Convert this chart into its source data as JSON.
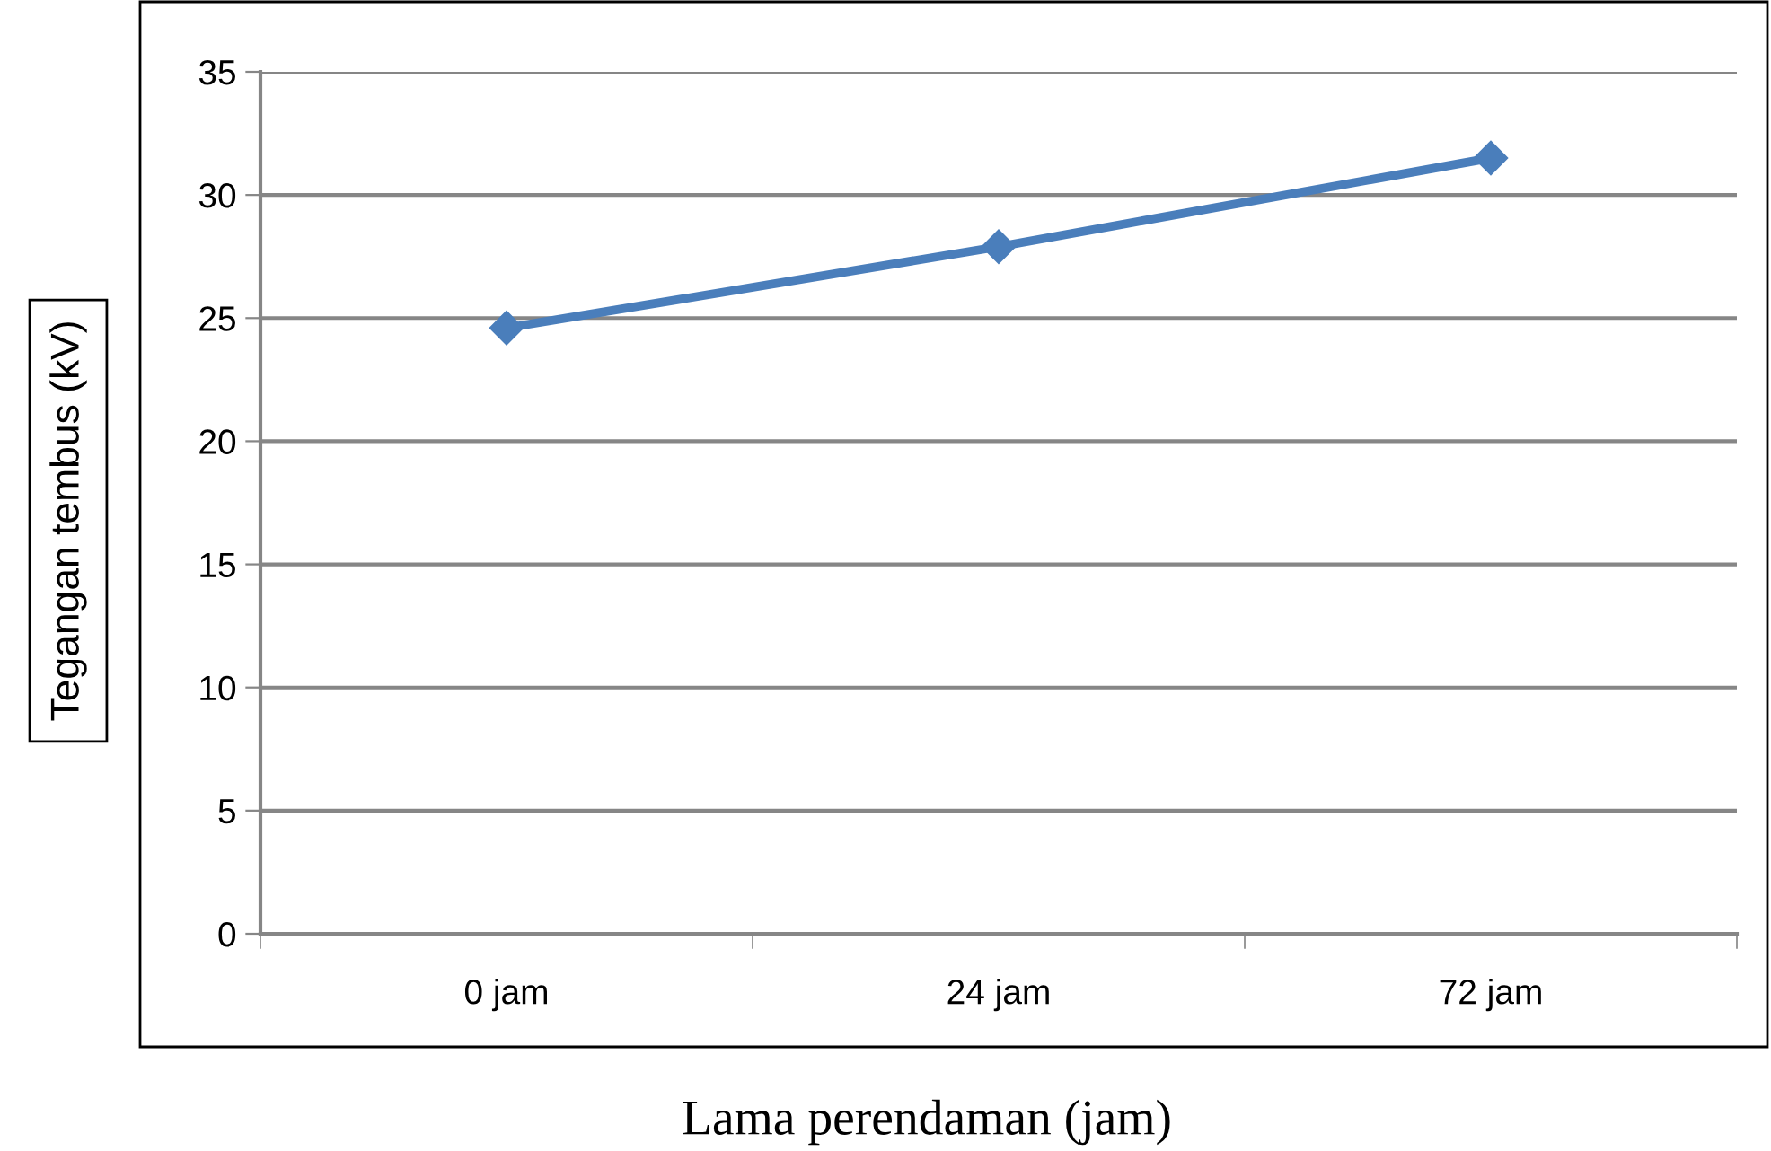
{
  "chart_data": {
    "type": "line",
    "xlabel": "Lama perendaman (jam)",
    "ylabel": "Tegangan tembus (kV)",
    "categories": [
      "0 jam",
      "24 jam",
      "72 jam"
    ],
    "series": [
      {
        "color": "#4a7ebb",
        "values": [
          24.6,
          27.9,
          31.5
        ]
      }
    ],
    "ylim": [
      0,
      35
    ],
    "yticks": [
      0,
      5,
      10,
      15,
      20,
      25,
      30,
      35
    ],
    "grid": "y",
    "marker": "diamond",
    "line_style": "solid",
    "legend": false
  }
}
